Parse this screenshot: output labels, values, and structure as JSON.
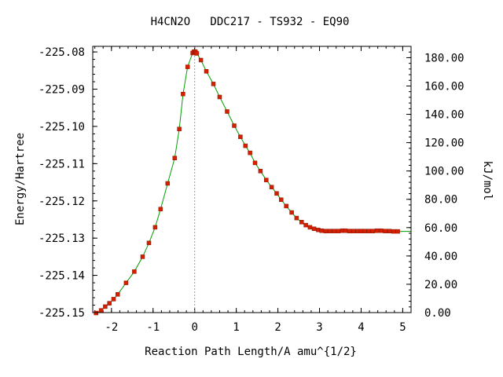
{
  "chart_data": {
    "type": "line",
    "title": "H4CN2O   DDC217 - TS932 - EQ90",
    "xlabel": "Reaction Path Length/A amu^{1/2}",
    "ylabel": "Energy/Hartree",
    "y2label": "kJ/mol",
    "xlim": [
      -2.45,
      5.2
    ],
    "ylim": [
      -225.15,
      -225.0785
    ],
    "y2lim": [
      0,
      188.0
    ],
    "x_ticks": [
      -2,
      -1,
      0,
      1,
      2,
      3,
      4,
      5
    ],
    "x_tick_labels": [
      "-2",
      "-1",
      "0",
      "1",
      "2",
      "3",
      "4",
      "5"
    ],
    "y_ticks": [
      -225.08,
      -225.09,
      -225.1,
      -225.11,
      -225.12,
      -225.13,
      -225.14,
      -225.15
    ],
    "y_tick_labels": [
      "-225.08",
      "-225.09",
      "-225.10",
      "-225.11",
      "-225.12",
      "-225.13",
      "-225.14",
      "-225.15"
    ],
    "y2_ticks": [
      180,
      160,
      140,
      120,
      100,
      80,
      60,
      40,
      20,
      0
    ],
    "y2_tick_labels": [
      "180.00",
      "160.00",
      "140.00",
      "120.00",
      "100.00",
      "80.00",
      "60.00",
      "40.00",
      "20.00",
      "0.00"
    ],
    "ts_marker_x": 0,
    "grid": false,
    "colors": {
      "line": "#00a000",
      "marker": "#d42000",
      "ts_line": "#999999"
    },
    "series": [
      {
        "x": [
          -2.37,
          -2.25,
          -2.15,
          -2.05,
          -1.95,
          -1.85,
          -1.65,
          -1.45,
          -1.25,
          -1.1,
          -0.95,
          -0.82,
          -0.65,
          -0.48,
          -0.37,
          -0.28,
          -0.17,
          -0.05,
          -0.02,
          0.0,
          0.02,
          0.05,
          0.15,
          0.28,
          0.45,
          0.6,
          0.78,
          0.95,
          1.1,
          1.22,
          1.33,
          1.45,
          1.58,
          1.72,
          1.85,
          1.97,
          2.08,
          2.2,
          2.33,
          2.45,
          2.57,
          2.67,
          2.77,
          2.87,
          2.97,
          3.05,
          3.15,
          3.25,
          3.35,
          3.45,
          3.55,
          3.62,
          3.72,
          3.82,
          3.92,
          4.0,
          4.08,
          4.18,
          4.28,
          4.38,
          4.48,
          4.58,
          4.68,
          4.78,
          4.88
        ],
        "y": [
          -225.1501,
          -225.1494,
          -225.1484,
          -225.1475,
          -225.1464,
          -225.1451,
          -225.142,
          -225.139,
          -225.135,
          -225.1313,
          -225.1271,
          -225.1222,
          -225.1153,
          -225.1085,
          -225.1007,
          -225.0913,
          -225.084,
          -225.0803,
          -225.08,
          -225.0799,
          -225.08,
          -225.0804,
          -225.0822,
          -225.0852,
          -225.0886,
          -225.0921,
          -225.096,
          -225.0998,
          -225.1028,
          -225.1052,
          -225.1071,
          -225.1098,
          -225.112,
          -225.1144,
          -225.1163,
          -225.118,
          -225.1197,
          -225.1214,
          -225.1231,
          -225.1246,
          -225.1257,
          -225.1265,
          -225.1271,
          -225.1275,
          -225.1278,
          -225.128,
          -225.1281,
          -225.1281,
          -225.1281,
          -225.1281,
          -225.128,
          -225.128,
          -225.1281,
          -225.1281,
          -225.1281,
          -225.1281,
          -225.1281,
          -225.1281,
          -225.1281,
          -225.128,
          -225.128,
          -225.1281,
          -225.1281,
          -225.1282,
          -225.1282
        ]
      }
    ]
  }
}
